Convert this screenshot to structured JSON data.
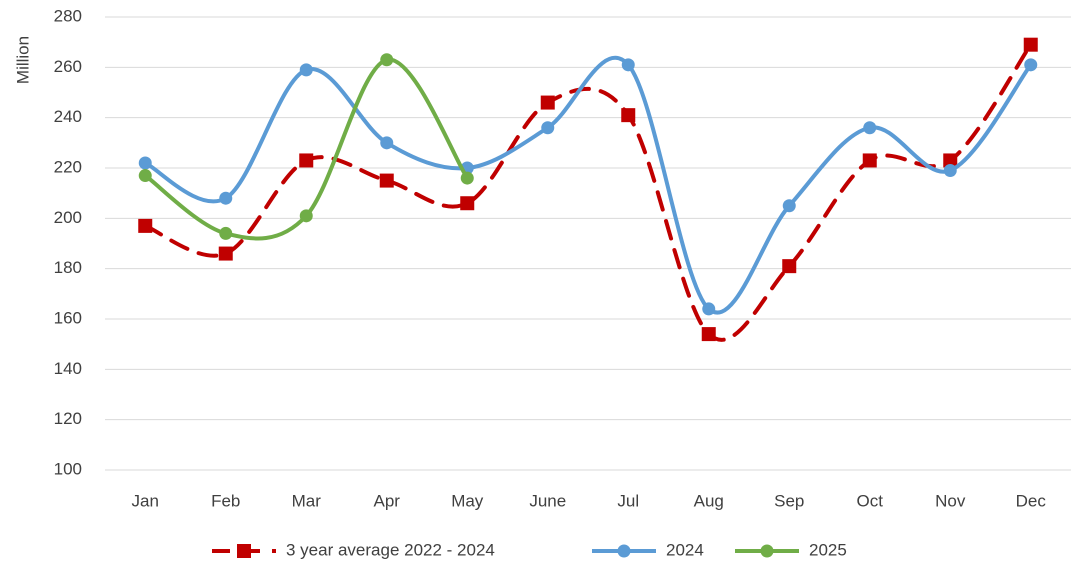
{
  "chart_data": {
    "type": "line",
    "ylabel": "Million",
    "categories": [
      "Jan",
      "Feb",
      "Mar",
      "Apr",
      "May",
      "June",
      "Jul",
      "Aug",
      "Sep",
      "Oct",
      "Nov",
      "Dec"
    ],
    "series": [
      {
        "name": "3 year average 2022 - 2024",
        "color": "#c00000",
        "marker": "square",
        "dashed": true,
        "values": [
          197,
          186,
          223,
          215,
          206,
          246,
          241,
          154,
          181,
          223,
          223,
          269
        ]
      },
      {
        "name": "2024",
        "color": "#5b9bd5",
        "marker": "circle",
        "dashed": false,
        "values": [
          222,
          208,
          259,
          230,
          220,
          236,
          261,
          164,
          205,
          236,
          219,
          261
        ]
      },
      {
        "name": "2025",
        "color": "#70ad47",
        "marker": "circle",
        "dashed": false,
        "values": [
          217,
          194,
          201,
          263,
          216,
          null,
          null,
          null,
          null,
          null,
          null,
          null
        ]
      }
    ],
    "ylim": [
      100,
      280
    ],
    "yticks": [
      100,
      120,
      140,
      160,
      180,
      200,
      220,
      240,
      260,
      280
    ],
    "grid": true,
    "smooth": true,
    "legend": "bottom"
  }
}
